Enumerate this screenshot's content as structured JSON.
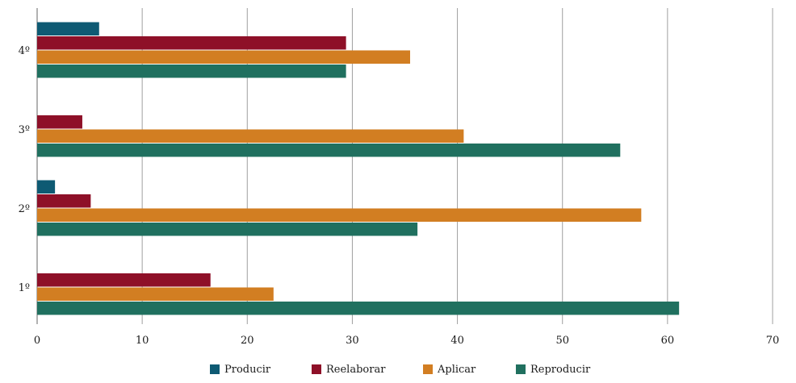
{
  "chart_data": {
    "type": "bar",
    "orientation": "horizontal",
    "categories": [
      "1º",
      "2º",
      "3º",
      "4º"
    ],
    "series": [
      {
        "name": "Producir",
        "color": "#0e5a73",
        "values": [
          0,
          1.7,
          0,
          5.9
        ]
      },
      {
        "name": "Reelaborar",
        "color": "#8e1028",
        "values": [
          16.5,
          5.1,
          4.3,
          29.4
        ]
      },
      {
        "name": "Aplicar",
        "color": "#d27e22",
        "values": [
          22.5,
          57.5,
          40.6,
          35.5
        ]
      },
      {
        "name": "Reproducir",
        "color": "#20705f",
        "values": [
          61.1,
          36.2,
          55.5,
          29.4
        ]
      }
    ],
    "xlim": [
      0,
      70
    ],
    "x_ticks": [
      "0",
      "10",
      "20",
      "30",
      "40",
      "50",
      "60",
      "70"
    ],
    "grid": true,
    "legend_position": "bottom",
    "title": "",
    "xlabel": "",
    "ylabel": ""
  }
}
